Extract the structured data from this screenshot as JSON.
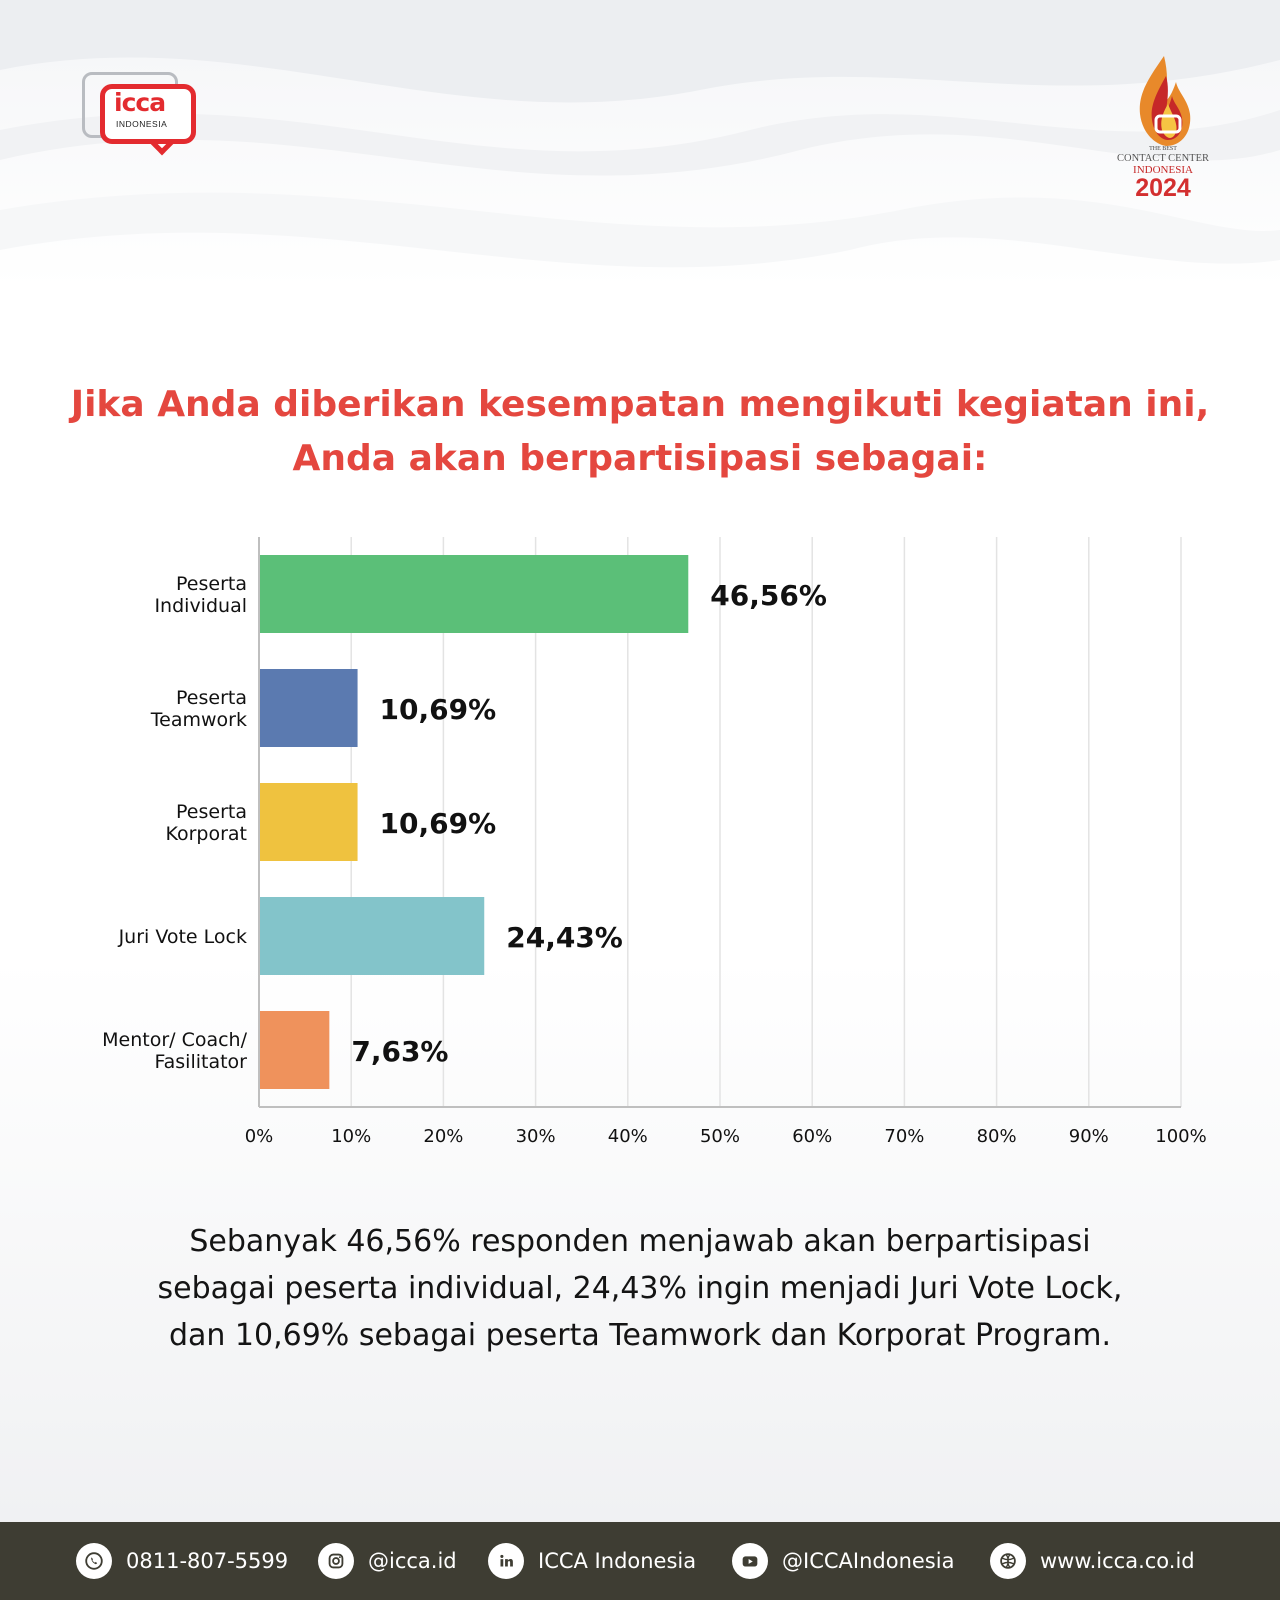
{
  "logo_left": {
    "name": "icca",
    "text": "INDONESIA"
  },
  "logo_right": {
    "small": "THE BEST",
    "line1": "CONTACT CENTER",
    "line2": "INDONESIA",
    "year": "2024"
  },
  "title": {
    "line1": "Jika Anda diberikan kesempatan mengikuti kegiatan ini,",
    "line2": "Anda akan berpartisipasi sebagai:"
  },
  "chart_data": {
    "type": "bar",
    "orientation": "horizontal",
    "categories": [
      [
        "Peserta",
        "Individual"
      ],
      [
        "Peserta",
        "Teamwork"
      ],
      [
        "Peserta",
        "Korporat"
      ],
      [
        "Juri Vote Lock"
      ],
      [
        "Mentor/ Coach/",
        "Fasilitator"
      ]
    ],
    "values": [
      46.56,
      10.69,
      10.69,
      24.43,
      7.63
    ],
    "data_labels": [
      "46,56%",
      "10,69%",
      "10,69%",
      "24,43%",
      "7,63%"
    ],
    "colors": [
      "#5bbf78",
      "#5b7ab0",
      "#efc23f",
      "#83c4ca",
      "#ef925c"
    ],
    "xlim": [
      0,
      100
    ],
    "xticks": [
      "0%",
      "10%",
      "20%",
      "30%",
      "40%",
      "50%",
      "60%",
      "70%",
      "80%",
      "90%",
      "100%"
    ],
    "grid": true,
    "title": "",
    "xlabel": "",
    "ylabel": ""
  },
  "summary": {
    "line1": "Sebanyak 46,56% responden menjawab akan berpartisipasi",
    "line2": "sebagai peserta individual, 24,43% ingin menjadi Juri Vote Lock,",
    "line3": "dan 10,69% sebagai peserta Teamwork dan Korporat Program."
  },
  "footer": {
    "phone": "0811-807-5599",
    "instagram": "@icca.id",
    "linkedin": "ICCA Indonesia",
    "youtube": "@ICCAIndonesia",
    "website": "www.icca.co.id"
  },
  "colors": {
    "title": "#e4473f",
    "footer_bg": "#3e3d33",
    "brand_red": "#e32b2f"
  }
}
